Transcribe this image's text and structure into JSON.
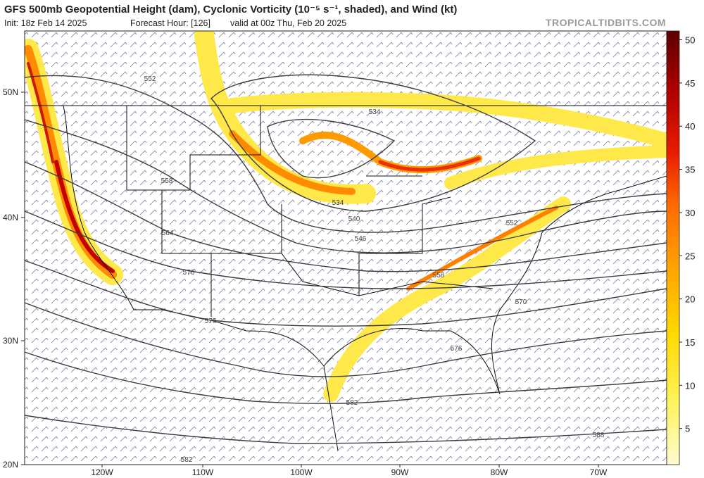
{
  "header": {
    "title": "GFS 500mb Geopotential Height (dam), Cyclonic Vorticity (10⁻⁵ s⁻¹, shaded), and Wind (kt)",
    "init": "Init: 18z Feb 14 2025",
    "forecast_hour": "Forecast Hour: [126]",
    "valid": "valid at 00z Thu, Feb 20 2025",
    "site": "TROPICALTIDBITS.COM"
  },
  "map": {
    "lat_labels": [
      "50N",
      "40N",
      "30N",
      "20N"
    ],
    "lon_labels": [
      "120W",
      "110W",
      "100W",
      "90W",
      "80W",
      "70W"
    ],
    "contour_labels": [
      "552",
      "558",
      "564",
      "570",
      "576",
      "582",
      "534",
      "534",
      "540",
      "546",
      "552",
      "558",
      "570",
      "576",
      "582",
      "588"
    ]
  },
  "colorbar": {
    "ticks": [
      5,
      10,
      15,
      20,
      25,
      30,
      35,
      40,
      45,
      50
    ]
  }
}
